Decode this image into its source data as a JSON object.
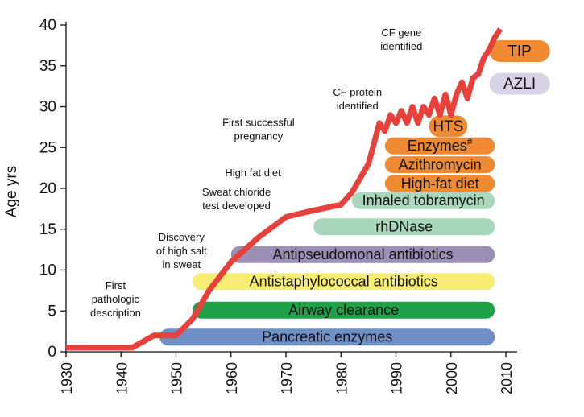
{
  "chart_data": {
    "type": "line",
    "ylabel": "Age yrs",
    "xlabel": "",
    "xlim": [
      1930,
      2010
    ],
    "ylim": [
      0,
      40
    ],
    "x_ticks": [
      "1930",
      "1940",
      "1950",
      "1960",
      "1970",
      "1980",
      "1990",
      "2000",
      "2010"
    ],
    "y_ticks": [
      "0",
      "5",
      "10",
      "15",
      "20",
      "25",
      "30",
      "35",
      "40"
    ],
    "series": [
      {
        "color": "#e8403a",
        "x": [
          1930,
          1942,
          1946,
          1950,
          1953,
          1956,
          1960,
          1965,
          1970,
          1975,
          1980,
          1982,
          1985,
          1987,
          1988,
          1989,
          1990,
          1991,
          1992,
          1993,
          1994,
          1995,
          1996,
          1997,
          1998,
          1999,
          2000,
          2001,
          2002,
          2003,
          2004,
          2005,
          2006,
          2007,
          2008,
          2009
        ],
        "y": [
          0.5,
          0.5,
          2,
          2,
          4,
          7.5,
          11,
          14,
          16.5,
          17.3,
          18,
          19.5,
          23,
          28,
          27,
          29,
          28,
          29.5,
          28,
          30,
          28,
          30,
          29,
          31,
          29,
          31.5,
          29,
          31.5,
          33,
          31,
          33.5,
          34,
          36,
          37,
          38.5,
          39.5
        ]
      }
    ],
    "annotations": [
      {
        "lines": [
          "First",
          "pathologic",
          "description"
        ],
        "x": 1939,
        "y": 6.0
      },
      {
        "lines": [
          "Discovery",
          "of high salt",
          "in sweat"
        ],
        "x": 1951,
        "y": 11.9
      },
      {
        "lines": [
          "Sweat chloride",
          "test developed"
        ],
        "x": 1961,
        "y": 18.3
      },
      {
        "lines": [
          "High fat diet"
        ],
        "x": 1964,
        "y": 21.5
      },
      {
        "lines": [
          "First successful",
          "pregnancy"
        ],
        "x": 1965,
        "y": 26.8
      },
      {
        "lines": [
          "CF protein",
          "identified"
        ],
        "x": 1983,
        "y": 30.5
      },
      {
        "lines": [
          "CF gene",
          "identified"
        ],
        "x": 1991,
        "y": 37.8
      }
    ],
    "therapies": [
      {
        "label": "Pancreatic enzymes",
        "start": 1947,
        "end": 2008,
        "y": 1.8,
        "color": "#6f8fc7"
      },
      {
        "label": "Airway clearance",
        "start": 1953,
        "end": 2008,
        "y": 5.1,
        "color": "#21a04a"
      },
      {
        "label": "Antistaphylococcal antibiotics",
        "start": 1953,
        "end": 2008,
        "y": 8.6,
        "color": "#f6ed72"
      },
      {
        "label": "Antipseudomonal antibiotics",
        "start": 1960,
        "end": 2008,
        "y": 11.9,
        "color": "#9b8fb5"
      },
      {
        "label": "rhDNase",
        "start": 1975,
        "end": 2008,
        "y": 15.3,
        "color": "#a9d7bc"
      },
      {
        "label": "Inhaled tobramycin",
        "start": 1982,
        "end": 2008,
        "y": 18.5,
        "color": "#a9d7bc"
      },
      {
        "label": "High-fat diet",
        "start": 1988,
        "end": 2008,
        "y": 20.6,
        "color": "#f08a32"
      },
      {
        "label": "Azithromycin",
        "start": 1988,
        "end": 2008,
        "y": 22.9,
        "color": "#f08a32"
      },
      {
        "label": "Enzymes#",
        "start": 1988,
        "end": 2008,
        "y": 25.2,
        "color": "#f08a32"
      },
      {
        "label": "HTS",
        "start": 1996,
        "end": 2003,
        "y": 27.6,
        "color": "#f08a32"
      },
      {
        "label": "AZLI",
        "start": 2007,
        "end": 2018,
        "y": 32.8,
        "color": "#d9d3e6"
      },
      {
        "label": "TIP",
        "start": 2007,
        "end": 2018,
        "y": 36.8,
        "color": "#f08a32"
      }
    ]
  }
}
